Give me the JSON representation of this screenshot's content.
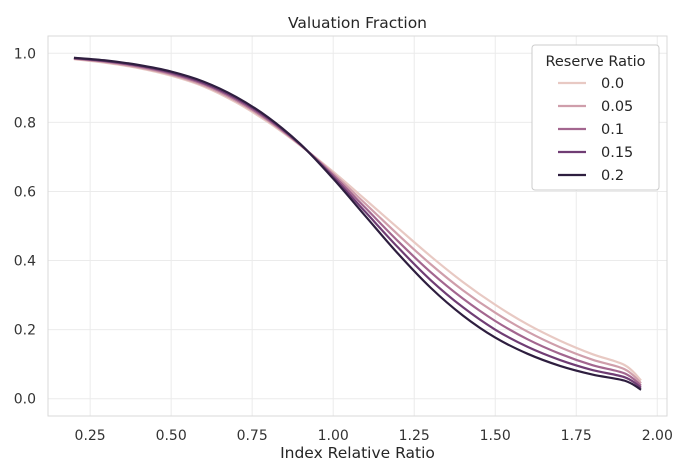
{
  "chart_data": {
    "type": "line",
    "title": "Valuation Fraction",
    "xlabel": "Index Relative Ratio",
    "ylabel": "",
    "xlim": [
      0.12,
      2.03
    ],
    "ylim": [
      -0.05,
      1.05
    ],
    "x_ticks": [
      "0.25",
      "0.50",
      "0.75",
      "1.00",
      "1.25",
      "1.50",
      "1.75",
      "2.00"
    ],
    "y_ticks": [
      "0.0",
      "0.2",
      "0.4",
      "0.6",
      "0.8",
      "1.0"
    ],
    "grid": true,
    "legend": {
      "title": "Reserve Ratio",
      "position": "top-right"
    },
    "x": [
      0.2,
      0.3,
      0.4,
      0.5,
      0.6,
      0.7,
      0.8,
      0.9,
      1.0,
      1.1,
      1.2,
      1.3,
      1.4,
      1.5,
      1.6,
      1.7,
      1.8,
      1.9,
      1.95
    ],
    "series": [
      {
        "name": "0.0",
        "color": "#e8c9c3",
        "values": [
          0.983,
          0.972,
          0.957,
          0.935,
          0.904,
          0.858,
          0.8,
          0.732,
          0.657,
          0.576,
          0.494,
          0.413,
          0.338,
          0.272,
          0.215,
          0.168,
          0.129,
          0.097,
          0.053
        ]
      },
      {
        "name": "0.05",
        "color": "#cf9eab",
        "values": [
          0.984,
          0.974,
          0.959,
          0.938,
          0.907,
          0.862,
          0.804,
          0.733,
          0.652,
          0.564,
          0.475,
          0.39,
          0.314,
          0.249,
          0.194,
          0.149,
          0.113,
          0.085,
          0.045
        ]
      },
      {
        "name": "0.1",
        "color": "#a3668f",
        "values": [
          0.985,
          0.976,
          0.962,
          0.941,
          0.911,
          0.866,
          0.807,
          0.734,
          0.647,
          0.552,
          0.456,
          0.367,
          0.29,
          0.225,
          0.172,
          0.13,
          0.097,
          0.073,
          0.038
        ]
      },
      {
        "name": "0.15",
        "color": "#703d74",
        "values": [
          0.986,
          0.977,
          0.964,
          0.944,
          0.914,
          0.87,
          0.811,
          0.735,
          0.642,
          0.54,
          0.438,
          0.344,
          0.265,
          0.2,
          0.15,
          0.112,
          0.083,
          0.062,
          0.032
        ]
      },
      {
        "name": "0.2",
        "color": "#2e1e3f",
        "values": [
          0.987,
          0.979,
          0.966,
          0.947,
          0.918,
          0.874,
          0.814,
          0.736,
          0.637,
          0.528,
          0.42,
          0.322,
          0.241,
          0.177,
          0.13,
          0.095,
          0.07,
          0.052,
          0.026
        ]
      }
    ]
  }
}
